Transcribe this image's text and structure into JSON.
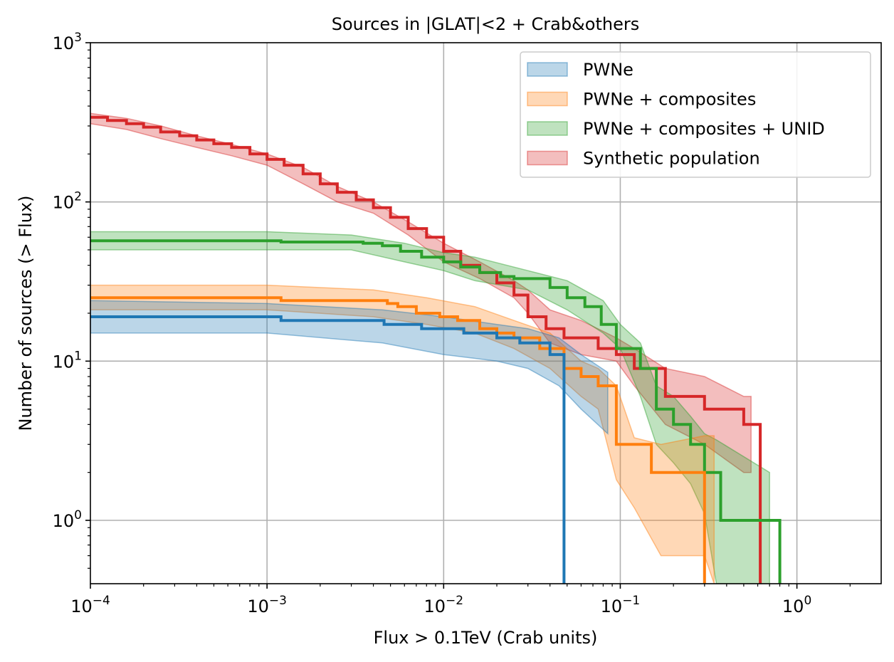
{
  "chart_data": {
    "type": "line",
    "title": "Sources in |GLAT|<2 + Crab&others",
    "xlabel": "Flux > 0.1TeV (Crab units)",
    "ylabel": "Number of sources (> Flux)",
    "xscale": "log",
    "yscale": "log",
    "xlim": [
      0.0001,
      3
    ],
    "ylim": [
      0.4,
      1000
    ],
    "grid": true,
    "legend_position": "top-right",
    "x_ticks": [
      {
        "value": 0.0001,
        "base": "10",
        "exp": "−4"
      },
      {
        "value": 0.001,
        "base": "10",
        "exp": "−3"
      },
      {
        "value": 0.01,
        "base": "10",
        "exp": "−2"
      },
      {
        "value": 0.1,
        "base": "10",
        "exp": "−1"
      },
      {
        "value": 1,
        "base": "10",
        "exp": "0"
      }
    ],
    "y_ticks": [
      {
        "value": 1,
        "base": "10",
        "exp": "0"
      },
      {
        "value": 10,
        "base": "10",
        "exp": "1"
      },
      {
        "value": 100,
        "base": "10",
        "exp": "2"
      },
      {
        "value": 1000,
        "base": "10",
        "exp": "3"
      }
    ],
    "series": [
      {
        "name": "Synthetic population",
        "color": "#d62728",
        "steps": [
          [
            0.0001,
            340
          ],
          [
            0.000125,
            325
          ],
          [
            0.00016,
            310
          ],
          [
            0.0002,
            295
          ],
          [
            0.00025,
            275
          ],
          [
            0.00032,
            260
          ],
          [
            0.0004,
            245
          ],
          [
            0.0005,
            232
          ],
          [
            0.00063,
            220
          ],
          [
            0.0008,
            200
          ],
          [
            0.001,
            185
          ],
          [
            0.00125,
            170
          ],
          [
            0.0016,
            150
          ],
          [
            0.002,
            130
          ],
          [
            0.0025,
            115
          ],
          [
            0.0032,
            103
          ],
          [
            0.004,
            92
          ],
          [
            0.005,
            80
          ],
          [
            0.0063,
            68
          ],
          [
            0.008,
            60
          ],
          [
            0.01,
            49
          ],
          [
            0.0125,
            40
          ],
          [
            0.016,
            36
          ],
          [
            0.02,
            31
          ],
          [
            0.025,
            26
          ],
          [
            0.03,
            19
          ],
          [
            0.038,
            16
          ],
          [
            0.048,
            14
          ],
          [
            0.075,
            12
          ],
          [
            0.095,
            11
          ],
          [
            0.12,
            9
          ],
          [
            0.18,
            6
          ],
          [
            0.3,
            5
          ],
          [
            0.5,
            4
          ],
          [
            0.62,
            4
          ]
        ],
        "band_x": [
          0.0001,
          0.00016,
          0.00025,
          0.0004,
          0.00063,
          0.001,
          0.0016,
          0.0025,
          0.004,
          0.0063,
          0.01,
          0.016,
          0.025,
          0.03,
          0.04,
          0.06,
          0.095,
          0.12,
          0.18,
          0.3,
          0.5,
          0.55
        ],
        "band_upper": [
          360,
          335,
          300,
          260,
          230,
          200,
          165,
          125,
          100,
          75,
          55,
          42,
          32,
          28,
          21,
          18,
          14,
          12,
          9,
          8,
          6,
          6
        ],
        "band_lower": [
          310,
          285,
          250,
          220,
          195,
          170,
          130,
          100,
          85,
          62,
          42,
          33,
          25,
          20,
          13,
          11,
          10,
          7,
          4,
          3,
          2,
          2
        ]
      },
      {
        "name": "PWNe + composites + UNID",
        "color": "#2ca02c",
        "steps": [
          [
            0.0001,
            57
          ],
          [
            0.0012,
            56
          ],
          [
            0.0035,
            55
          ],
          [
            0.0045,
            53
          ],
          [
            0.0057,
            49
          ],
          [
            0.0075,
            45
          ],
          [
            0.01,
            42
          ],
          [
            0.0125,
            39
          ],
          [
            0.016,
            36
          ],
          [
            0.021,
            34
          ],
          [
            0.025,
            33
          ],
          [
            0.04,
            29
          ],
          [
            0.05,
            25
          ],
          [
            0.063,
            22
          ],
          [
            0.078,
            17
          ],
          [
            0.095,
            12
          ],
          [
            0.13,
            9
          ],
          [
            0.16,
            5
          ],
          [
            0.2,
            4
          ],
          [
            0.25,
            3
          ],
          [
            0.3,
            2
          ],
          [
            0.37,
            1
          ],
          [
            0.8,
            1
          ]
        ],
        "band_x": [
          0.0001,
          0.001,
          0.003,
          0.006,
          0.01,
          0.015,
          0.03,
          0.05,
          0.08,
          0.1,
          0.13,
          0.16,
          0.2,
          0.25,
          0.3,
          0.35,
          0.7
        ],
        "band_upper": [
          65,
          65,
          62,
          55,
          48,
          45,
          37,
          32,
          24,
          17,
          13,
          7,
          6,
          4.5,
          3.5,
          3.2,
          2
        ],
        "band_lower": [
          50,
          50,
          50,
          42,
          37,
          32,
          28,
          21,
          15,
          12,
          6,
          3,
          2.3,
          1.7,
          1.1,
          0.4,
          0.4
        ]
      },
      {
        "name": "PWNe + composites",
        "color": "#ff7f0e",
        "steps": [
          [
            0.0001,
            25
          ],
          [
            0.0012,
            24
          ],
          [
            0.0048,
            23
          ],
          [
            0.0055,
            22
          ],
          [
            0.007,
            20
          ],
          [
            0.0095,
            19
          ],
          [
            0.012,
            18
          ],
          [
            0.016,
            16
          ],
          [
            0.02,
            15
          ],
          [
            0.025,
            14
          ],
          [
            0.035,
            12
          ],
          [
            0.048,
            9
          ],
          [
            0.06,
            8
          ],
          [
            0.075,
            7
          ],
          [
            0.095,
            3
          ],
          [
            0.15,
            2
          ],
          [
            0.3,
            2
          ]
        ],
        "band_x": [
          0.0001,
          0.001,
          0.004,
          0.008,
          0.015,
          0.025,
          0.04,
          0.06,
          0.075,
          0.095,
          0.12,
          0.17,
          0.3,
          0.34
        ],
        "band_upper": [
          30,
          30,
          28,
          25,
          22,
          18,
          15,
          10,
          9,
          7,
          3.3,
          3,
          3.4,
          3.4
        ],
        "band_lower": [
          21,
          21,
          19,
          17,
          15,
          12,
          9,
          6,
          5,
          1.8,
          1.2,
          0.6,
          0.6,
          0.4
        ]
      },
      {
        "name": "PWNe",
        "color": "#1f77b4",
        "steps": [
          [
            0.0001,
            19
          ],
          [
            0.0012,
            18
          ],
          [
            0.0046,
            17
          ],
          [
            0.0075,
            16
          ],
          [
            0.013,
            15
          ],
          [
            0.02,
            14
          ],
          [
            0.027,
            13
          ],
          [
            0.04,
            11
          ],
          [
            0.048,
            11
          ]
        ],
        "band_x": [
          0.0001,
          0.001,
          0.0045,
          0.01,
          0.02,
          0.03,
          0.045,
          0.06,
          0.085
        ],
        "band_upper": [
          24,
          23,
          21,
          19,
          17,
          16,
          14,
          11,
          8.5
        ],
        "band_lower": [
          15,
          15,
          13,
          11,
          10,
          9,
          7,
          5,
          3.5
        ]
      }
    ],
    "legend_order": [
      "PWNe",
      "PWNe + composites",
      "PWNe + composites + UNID",
      "Synthetic population"
    ],
    "legend_colors": [
      "#1f77b4",
      "#ff7f0e",
      "#2ca02c",
      "#d62728"
    ]
  }
}
